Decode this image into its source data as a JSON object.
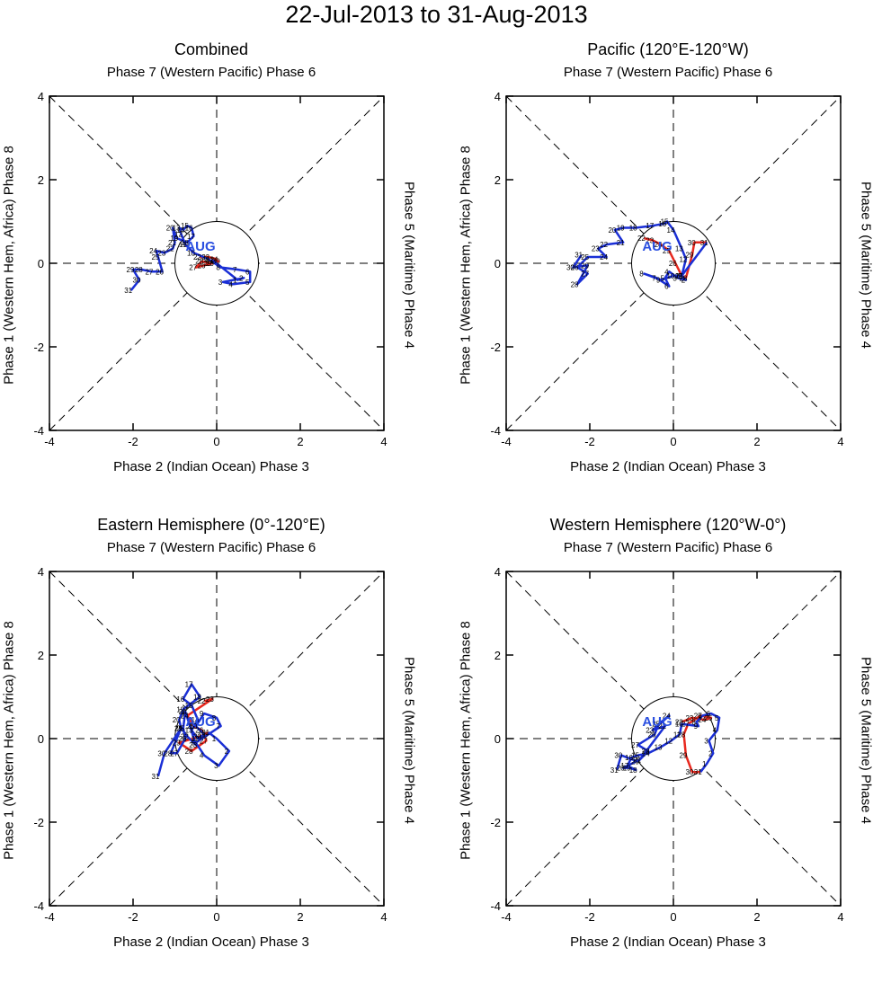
{
  "title": "22-Jul-2013 to 31-Aug-2013",
  "colors": {
    "july": "#e8281e",
    "august": "#1a2fd6",
    "month_label": "#2a4fe0",
    "guides": "#000000"
  },
  "axis_labels": {
    "top": "Phase 7 (Western Pacific) Phase 6",
    "bottom": "Phase 2 (Indian Ocean) Phase 3",
    "left": "Phase 1 (Western Hem, Africa) Phase 8",
    "right": "Phase 5 (Maritime) Phase 4"
  },
  "panels": [
    {
      "title": "Combined"
    },
    {
      "title": "Pacific (120°E-120°W)"
    },
    {
      "title": "Eastern Hemisphere (0°-120°E)"
    },
    {
      "title": "Western Hemisphere (120°W-0°)"
    }
  ],
  "chart_data": [
    {
      "type": "line",
      "title": "Combined",
      "xlim": [
        -4,
        4
      ],
      "ylim": [
        -4,
        4
      ],
      "xticks": [
        -4,
        -2,
        0,
        2,
        4
      ],
      "yticks": [
        -4,
        -2,
        0,
        2,
        4
      ],
      "month_label": "AUG",
      "series": [
        {
          "name": "Jul",
          "color": "#e8281e",
          "points": [
            [
              -0.4,
              0.15,
              "22"
            ],
            [
              -0.2,
              0.15,
              "23"
            ],
            [
              0.0,
              0.1,
              "24"
            ],
            [
              -0.1,
              0.0,
              "25"
            ],
            [
              -0.3,
              -0.05,
              "26"
            ],
            [
              -0.5,
              -0.1,
              "27"
            ],
            [
              -0.35,
              0.05,
              "28"
            ],
            [
              -0.15,
              0.0,
              "29"
            ],
            [
              0.05,
              0.05,
              "30"
            ],
            [
              -0.1,
              0.08,
              "31"
            ]
          ]
        },
        {
          "name": "Aug",
          "color": "#1a2fd6",
          "points": [
            [
              -0.1,
              0.08,
              ""
            ],
            [
              0.5,
              -0.4,
              "1"
            ],
            [
              0.65,
              -0.35,
              "2"
            ],
            [
              0.15,
              -0.45,
              "3"
            ],
            [
              0.4,
              -0.5,
              "4"
            ],
            [
              0.8,
              -0.45,
              "5"
            ],
            [
              0.8,
              -0.2,
              "6"
            ],
            [
              0.5,
              -0.15,
              "7"
            ],
            [
              0.1,
              -0.1,
              "8"
            ],
            [
              -0.2,
              0.1,
              "9"
            ],
            [
              -0.55,
              0.25,
              "10"
            ],
            [
              -0.75,
              0.45,
              "11"
            ],
            [
              -0.85,
              0.7,
              "12"
            ],
            [
              -0.9,
              0.85,
              "13"
            ],
            [
              -0.8,
              0.8,
              "14"
            ],
            [
              -0.7,
              0.9,
              "15"
            ],
            [
              -0.6,
              0.85,
              "16"
            ],
            [
              -0.55,
              0.65,
              "17"
            ],
            [
              -0.7,
              0.5,
              "18"
            ],
            [
              -0.95,
              0.6,
              "19"
            ],
            [
              -1.05,
              0.85,
              "20"
            ],
            [
              -1.0,
              0.5,
              "21"
            ],
            [
              -1.05,
              0.35,
              "22"
            ],
            [
              -1.25,
              0.25,
              "23"
            ],
            [
              -1.45,
              0.3,
              "24"
            ],
            [
              -1.4,
              0.15,
              "25"
            ],
            [
              -1.3,
              -0.2,
              "26"
            ],
            [
              -1.55,
              -0.2,
              "27"
            ],
            [
              -1.8,
              -0.15,
              "28"
            ],
            [
              -2.0,
              -0.15,
              "29"
            ],
            [
              -1.85,
              -0.4,
              "30"
            ],
            [
              -2.05,
              -0.65,
              "31"
            ]
          ]
        }
      ]
    },
    {
      "type": "line",
      "title": "Pacific (120°E-120°W)",
      "xlim": [
        -4,
        4
      ],
      "ylim": [
        -4,
        4
      ],
      "xticks": [
        -4,
        -2,
        0,
        2,
        4
      ],
      "yticks": [
        -4,
        -2,
        0,
        2,
        4
      ],
      "month_label": "AUG",
      "series": [
        {
          "name": "Jul",
          "color": "#e8281e",
          "points": [
            [
              -0.7,
              0.6,
              "22"
            ],
            [
              -0.5,
              0.55,
              "23"
            ],
            [
              -0.3,
              0.45,
              "24"
            ],
            [
              -0.1,
              0.3,
              "25"
            ],
            [
              0.05,
              0.0,
              "26"
            ],
            [
              0.2,
              -0.3,
              "27"
            ],
            [
              0.3,
              -0.35,
              "28"
            ],
            [
              0.45,
              0.2,
              "29"
            ],
            [
              0.5,
              0.5,
              "30"
            ],
            [
              0.8,
              0.5,
              "31"
            ]
          ]
        },
        {
          "name": "Aug",
          "color": "#1a2fd6",
          "points": [
            [
              0.8,
              0.5,
              ""
            ],
            [
              0.2,
              -0.3,
              "1"
            ],
            [
              0.3,
              -0.4,
              "2"
            ],
            [
              0.1,
              -0.35,
              "3"
            ],
            [
              -0.1,
              -0.2,
              "4"
            ],
            [
              -0.2,
              -0.35,
              "5"
            ],
            [
              -0.1,
              -0.55,
              "6"
            ],
            [
              -0.4,
              -0.35,
              "7"
            ],
            [
              -0.7,
              -0.25,
              "8"
            ],
            [
              -0.3,
              -0.4,
              "9"
            ],
            [
              0.0,
              -0.3,
              "10"
            ],
            [
              0.2,
              -0.3,
              "11"
            ],
            [
              0.3,
              0.1,
              "12"
            ],
            [
              0.2,
              0.35,
              "13"
            ],
            [
              0.0,
              0.8,
              "14"
            ],
            [
              -0.15,
              1.0,
              "15"
            ],
            [
              -0.2,
              0.95,
              "16"
            ],
            [
              -0.5,
              0.9,
              "17"
            ],
            [
              -0.9,
              0.85,
              "18"
            ],
            [
              -1.2,
              0.85,
              "19"
            ],
            [
              -1.4,
              0.8,
              "20"
            ],
            [
              -1.2,
              0.5,
              "21"
            ],
            [
              -1.6,
              0.45,
              "22"
            ],
            [
              -1.8,
              0.35,
              "23"
            ],
            [
              -1.6,
              0.15,
              "24"
            ],
            [
              -2.05,
              0.15,
              "25"
            ],
            [
              -2.3,
              -0.1,
              "26"
            ],
            [
              -2.05,
              -0.25,
              "27"
            ],
            [
              -2.3,
              -0.5,
              "28"
            ],
            [
              -2.05,
              -0.05,
              "29"
            ],
            [
              -2.4,
              -0.1,
              "30"
            ],
            [
              -2.2,
              0.2,
              "31"
            ]
          ]
        }
      ]
    },
    {
      "type": "line",
      "title": "Eastern Hemisphere (0°-120°E)",
      "xlim": [
        -4,
        4
      ],
      "ylim": [
        -4,
        4
      ],
      "xticks": [
        -4,
        -2,
        0,
        2,
        4
      ],
      "yticks": [
        -4,
        -2,
        0,
        2,
        4
      ],
      "month_label": "AUG",
      "series": [
        {
          "name": "Jul",
          "color": "#e8281e",
          "points": [
            [
              -0.3,
              0.9,
              "22"
            ],
            [
              -0.1,
              0.95,
              "23"
            ],
            [
              -0.7,
              0.55,
              "24"
            ],
            [
              -0.55,
              0.3,
              "25"
            ],
            [
              -0.35,
              0.2,
              "26"
            ],
            [
              -0.25,
              -0.05,
              "27"
            ],
            [
              -0.6,
              -0.3,
              "28"
            ],
            [
              -0.9,
              -0.1,
              "29"
            ],
            [
              -0.4,
              0.05,
              "30"
            ],
            [
              -0.2,
              0.15,
              "31"
            ]
          ]
        },
        {
          "name": "Aug",
          "color": "#1a2fd6",
          "points": [
            [
              -0.2,
              0.15,
              ""
            ],
            [
              0.0,
              0.0,
              "1"
            ],
            [
              0.3,
              -0.3,
              "2"
            ],
            [
              0.05,
              -0.65,
              "3"
            ],
            [
              -0.3,
              -0.4,
              "4"
            ],
            [
              -0.5,
              -0.1,
              "5"
            ],
            [
              -0.2,
              0.1,
              "6"
            ],
            [
              0.1,
              0.3,
              "7"
            ],
            [
              0.0,
              0.5,
              "8"
            ],
            [
              -0.3,
              0.6,
              "9"
            ],
            [
              -0.5,
              0.3,
              "10"
            ],
            [
              -0.3,
              0.1,
              "11"
            ],
            [
              -0.45,
              0.0,
              "12"
            ],
            [
              -0.6,
              0.2,
              "13"
            ],
            [
              -0.45,
              0.45,
              "14"
            ],
            [
              -0.6,
              0.8,
              "15"
            ],
            [
              -0.8,
              0.95,
              "16"
            ],
            [
              -0.6,
              1.3,
              "17"
            ],
            [
              -0.4,
              1.0,
              "18"
            ],
            [
              -0.8,
              0.7,
              "19"
            ],
            [
              -0.9,
              0.45,
              "20"
            ],
            [
              -0.85,
              0.25,
              "21"
            ],
            [
              -0.7,
              0.05,
              "22"
            ],
            [
              -0.5,
              -0.15,
              "23"
            ],
            [
              -0.75,
              0.65,
              "24"
            ],
            [
              -0.8,
              0.25,
              "25"
            ],
            [
              -0.75,
              0.0,
              "26"
            ],
            [
              -0.95,
              -0.35,
              "27"
            ],
            [
              -1.1,
              -0.35,
              "28"
            ],
            [
              -0.85,
              0.25,
              "29"
            ],
            [
              -1.25,
              -0.35,
              "30"
            ],
            [
              -1.4,
              -0.9,
              "31"
            ]
          ]
        }
      ]
    },
    {
      "type": "line",
      "title": "Western Hemisphere (120°W-0°)",
      "xlim": [
        -4,
        4
      ],
      "ylim": [
        -4,
        4
      ],
      "xticks": [
        -4,
        -2,
        0,
        2,
        4
      ],
      "yticks": [
        -4,
        -2,
        0,
        2,
        4
      ],
      "month_label": "AUG",
      "series": [
        {
          "name": "Jul",
          "color": "#e8281e",
          "points": [
            [
              0.2,
              0.4,
              "22"
            ],
            [
              0.45,
              0.5,
              "23"
            ],
            [
              0.75,
              0.45,
              "24"
            ],
            [
              0.9,
              0.5,
              "25"
            ],
            [
              0.65,
              0.55,
              "26"
            ],
            [
              0.35,
              0.35,
              "27"
            ],
            [
              0.25,
              0.1,
              "28"
            ],
            [
              0.3,
              -0.4,
              "29"
            ],
            [
              0.45,
              -0.8,
              "30"
            ],
            [
              0.65,
              -0.8,
              "31"
            ]
          ]
        },
        {
          "name": "Aug",
          "color": "#1a2fd6",
          "points": [
            [
              0.65,
              -0.8,
              ""
            ],
            [
              0.8,
              -0.6,
              "1"
            ],
            [
              0.95,
              -0.35,
              "2"
            ],
            [
              0.85,
              -0.05,
              "3"
            ],
            [
              1.05,
              0.2,
              "4"
            ],
            [
              1.1,
              0.5,
              "5"
            ],
            [
              0.9,
              0.6,
              "6"
            ],
            [
              0.7,
              0.55,
              "7"
            ],
            [
              0.55,
              0.4,
              "8"
            ],
            [
              0.6,
              0.3,
              "9"
            ],
            [
              0.2,
              0.35,
              "10"
            ],
            [
              0.15,
              0.1,
              "11"
            ],
            [
              -0.05,
              -0.05,
              "12"
            ],
            [
              -0.3,
              -0.2,
              "13"
            ],
            [
              -0.6,
              -0.35,
              "14"
            ],
            [
              -0.85,
              -0.4,
              "15"
            ],
            [
              -1.0,
              -0.45,
              "16"
            ],
            [
              -1.1,
              -0.65,
              "17"
            ],
            [
              -0.9,
              -0.75,
              "18"
            ],
            [
              -1.05,
              -0.7,
              "19"
            ],
            [
              -1.2,
              -0.7,
              "20"
            ],
            [
              -0.8,
              -0.5,
              "21"
            ],
            [
              -0.2,
              0.3,
              "22"
            ],
            [
              -0.5,
              0.2,
              "23"
            ],
            [
              -0.1,
              0.55,
              "24"
            ],
            [
              -0.35,
              0.35,
              "25"
            ],
            [
              -0.45,
              0.1,
              "26"
            ],
            [
              -0.85,
              -0.15,
              "27"
            ],
            [
              -0.6,
              -0.3,
              "28"
            ],
            [
              -0.85,
              -0.55,
              "29"
            ],
            [
              -1.25,
              -0.4,
              "30"
            ],
            [
              -1.35,
              -0.75,
              "31"
            ]
          ]
        }
      ]
    }
  ]
}
